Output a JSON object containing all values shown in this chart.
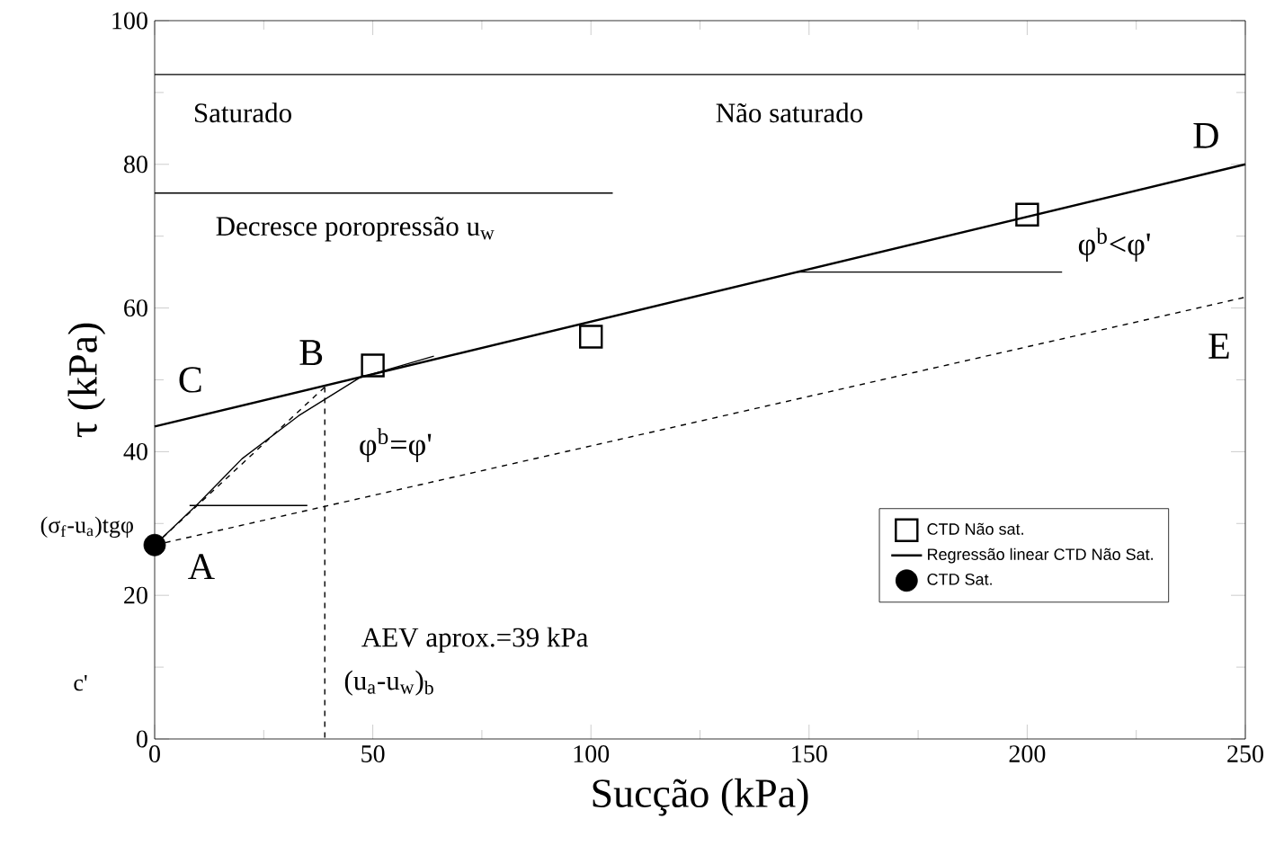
{
  "chart_data": {
    "type": "scatter",
    "xlabel": "Sucção (kPa)",
    "ylabel": "τ (kPa)",
    "xlim": [
      0,
      250
    ],
    "ylim": [
      0,
      100
    ],
    "xticks": [
      0,
      50,
      100,
      150,
      200,
      250
    ],
    "yticks": [
      0,
      20,
      40,
      60,
      80,
      100
    ],
    "legend": "bottom right",
    "series": [
      {
        "name": "CTD Não sat.",
        "marker": "square",
        "color": "#000000",
        "x": [
          50,
          100,
          200
        ],
        "values": [
          52,
          56,
          73
        ]
      },
      {
        "name": "Regressão linear CTD Não Sat.",
        "type": "line",
        "marker": "none",
        "line_style": "solid",
        "color": "#000000",
        "x": [
          0,
          250
        ],
        "values": [
          43.5,
          80
        ]
      },
      {
        "name": "CTD Sat.",
        "marker": "circle",
        "color": "#000000",
        "x": [
          0
        ],
        "values": [
          27
        ]
      },
      {
        "type": "line",
        "marker": "none",
        "line_style": "dashed",
        "color": "#000000",
        "x": [
          0,
          250
        ],
        "values": [
          27,
          61.5
        ]
      },
      {
        "type": "line",
        "marker": "none",
        "line_style": "dashed",
        "color": "#000000",
        "x": [
          0,
          39
        ],
        "values": [
          27,
          49
        ]
      },
      {
        "type": "line",
        "marker": "none",
        "line_style": "solid",
        "color": "#000000",
        "x": [
          0,
          10,
          20,
          33,
          47,
          64
        ],
        "values": [
          27,
          32.8,
          39,
          45,
          50.3,
          53.3
        ]
      },
      {
        "type": "line",
        "marker": "none",
        "line_style": "dashed",
        "color": "#000000",
        "x": [
          39,
          39
        ],
        "values": [
          49,
          0
        ]
      },
      {
        "type": "line",
        "marker": "none",
        "line_style": "solid",
        "color": "#000000",
        "x": [
          0,
          105
        ],
        "values": [
          76,
          76
        ]
      },
      {
        "type": "line",
        "marker": "none",
        "line_style": "solid",
        "color": "#000000",
        "x": [
          8,
          35
        ],
        "values": [
          32.5,
          32.5
        ]
      },
      {
        "type": "line",
        "marker": "none",
        "line_style": "solid",
        "color": "#000000",
        "x": [
          147,
          208
        ],
        "values": [
          65,
          65
        ]
      }
    ],
    "ref_lines": [
      {
        "axis": "y",
        "value": 92.5,
        "color": "#000000"
      }
    ],
    "annotations": [
      "Saturado",
      "Não saturado",
      "Decresce poropressão u$_{w}$",
      "φ$^{b}$=φ'",
      "φ$^{b}$<φ'",
      "AEV aprox.=39 kPa",
      "(u$_{a}$-u$_{w}$)$_{b}$",
      "A",
      "B",
      "C",
      "D",
      "E",
      "(σ$_{f}$-u$_{a}$)tgφ",
      "c'"
    ]
  }
}
